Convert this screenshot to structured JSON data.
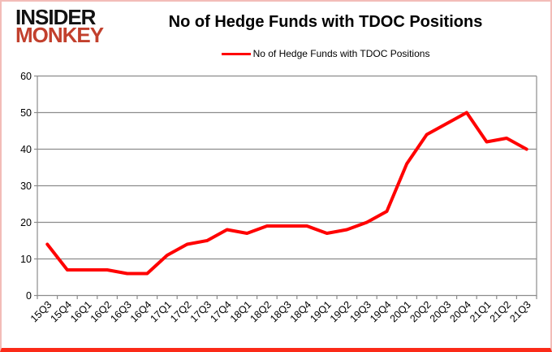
{
  "logo": {
    "line1": "INSIDER",
    "line2": "MONKEY"
  },
  "header": {
    "title": "No of Hedge Funds with TDOC Positions"
  },
  "legend": {
    "label": "No of Hedge Funds with TDOC Positions"
  },
  "chart_data": {
    "type": "line",
    "title": "No of Hedge Funds with TDOC Positions",
    "categories": [
      "15Q3",
      "15Q4",
      "16Q1",
      "16Q2",
      "16Q3",
      "16Q4",
      "17Q1",
      "17Q2",
      "17Q3",
      "17Q4",
      "18Q1",
      "18Q2",
      "18Q3",
      "18Q4",
      "19Q1",
      "19Q2",
      "19Q3",
      "19Q4",
      "20Q1",
      "20Q2",
      "20Q3",
      "20Q4",
      "21Q1",
      "21Q2",
      "21Q3"
    ],
    "series": [
      {
        "name": "No of Hedge Funds with TDOC Positions",
        "values": [
          14,
          7,
          7,
          7,
          6,
          6,
          11,
          14,
          15,
          18,
          17,
          19,
          19,
          19,
          17,
          18,
          20,
          23,
          36,
          44,
          47,
          50,
          42,
          43,
          40
        ]
      }
    ],
    "xlabel": "",
    "ylabel": "",
    "ylim": [
      0,
      60
    ],
    "y_ticks": [
      0,
      10,
      20,
      30,
      40,
      50,
      60
    ],
    "grid": true,
    "legend_position": "top"
  },
  "colors": {
    "line": "#ff0000",
    "grid": "#8c8c8c",
    "axis_text": "#000000",
    "logo_black": "#121212",
    "logo_red": "#c2402d",
    "border_pink": "#f3bcb8",
    "border_bottom_red": "#fb2a18"
  }
}
